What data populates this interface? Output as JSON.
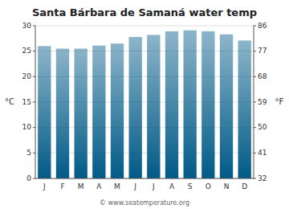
{
  "chart_data": {
    "type": "bar",
    "title": "Santa Bárbara de Samaná water temp",
    "categories": [
      "J",
      "F",
      "M",
      "A",
      "M",
      "J",
      "J",
      "A",
      "S",
      "O",
      "N",
      "D"
    ],
    "values": [
      26.0,
      25.5,
      25.5,
      26.1,
      26.5,
      27.8,
      28.2,
      28.9,
      29.1,
      28.9,
      28.3,
      27.1
    ],
    "color": "#005a87",
    "ylabel": "°C",
    "ylim": [
      0,
      30
    ],
    "yticks": [
      0,
      5,
      10,
      15,
      20,
      25,
      30
    ],
    "y2label": "°F",
    "y2lim": [
      32,
      86
    ],
    "y2ticks": [
      32,
      41,
      50,
      59,
      68,
      77,
      86
    ],
    "grid": true,
    "annotations": [
      "© www.seatemperature.org"
    ]
  }
}
